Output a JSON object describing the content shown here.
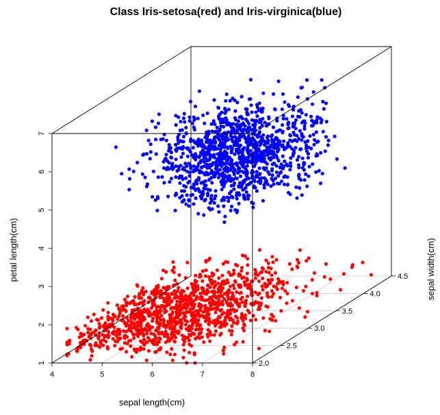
{
  "chart_data": {
    "type": "scatter",
    "projection": "3d",
    "title": "Class Iris-setosa(red) and Iris-virginica(blue)",
    "xlabel": "sepal length(cm)",
    "ylabel": "sepal width(cm)",
    "zlabel": "petal length(cm)",
    "xlim": [
      4,
      8
    ],
    "ylim": [
      2.0,
      4.5
    ],
    "zlim": [
      1,
      7
    ],
    "x_ticks": [
      "4",
      "5",
      "6",
      "7",
      "8"
    ],
    "y_ticks": [
      "2.0",
      "2.5",
      "3.0",
      "3.5",
      "4.0",
      "4.5"
    ],
    "z_ticks": [
      "1",
      "2",
      "3",
      "4",
      "5",
      "6",
      "7"
    ],
    "grid": "xy-floor",
    "series": [
      {
        "color": "#ff0000",
        "points_per_cluster": 1200,
        "x_range": [
          4.3,
          8.0
        ],
        "y_range": [
          2.0,
          4.5
        ],
        "z_range": [
          1.0,
          1.9
        ],
        "x_mean": 5.5,
        "y_mean": 3.0,
        "z_mean": 1.45
      },
      {
        "color": "#0000ff",
        "points_per_cluster": 1200,
        "x_range": [
          4.9,
          7.9
        ],
        "y_range": [
          2.2,
          3.8
        ],
        "z_range": [
          4.5,
          6.9
        ],
        "x_mean": 6.6,
        "y_mean": 3.0,
        "z_mean": 5.55
      }
    ]
  }
}
